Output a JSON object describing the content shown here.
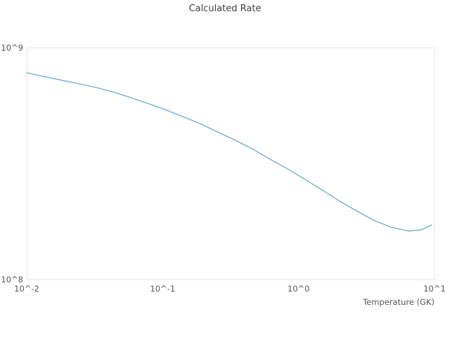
{
  "chart": {
    "title": "Calculated Rate",
    "xlabel": "Temperature (GK)"
  },
  "chart_data": {
    "type": "line",
    "title": "Calculated Rate",
    "xlabel": "Temperature (GK)",
    "ylabel": "",
    "x_scale": "log",
    "y_scale": "log",
    "xlim": [
      0.01,
      10
    ],
    "ylim": [
      100000000,
      1000000000
    ],
    "grid": false,
    "legend_position": "none",
    "line_color": "#5ba4cf",
    "plot_border_color": "#e3e3e3",
    "x_tick_labels": [
      "10^-2",
      "10^-1",
      "10^0",
      "10^1"
    ],
    "x_tick_values": [
      0.01,
      0.1,
      1,
      10
    ],
    "y_tick_labels": [
      "10^8",
      "10^9"
    ],
    "y_tick_values": [
      100000000,
      1000000000
    ],
    "x": [
      0.01,
      0.0135,
      0.018,
      0.024,
      0.032,
      0.043,
      0.058,
      0.078,
      0.105,
      0.14,
      0.19,
      0.25,
      0.34,
      0.46,
      0.62,
      0.83,
      1.1,
      1.5,
      2.0,
      2.7,
      3.6,
      4.8,
      6.5,
      8.0,
      9.5
    ],
    "y": [
      780000000,
      750000000,
      725000000,
      700000000,
      675000000,
      645000000,
      610000000,
      575000000,
      540000000,
      505000000,
      470000000,
      435000000,
      400000000,
      365000000,
      330000000,
      300000000,
      272000000,
      243000000,
      218000000,
      197000000,
      180000000,
      168000000,
      162000000,
      164000000,
      172000000
    ]
  }
}
